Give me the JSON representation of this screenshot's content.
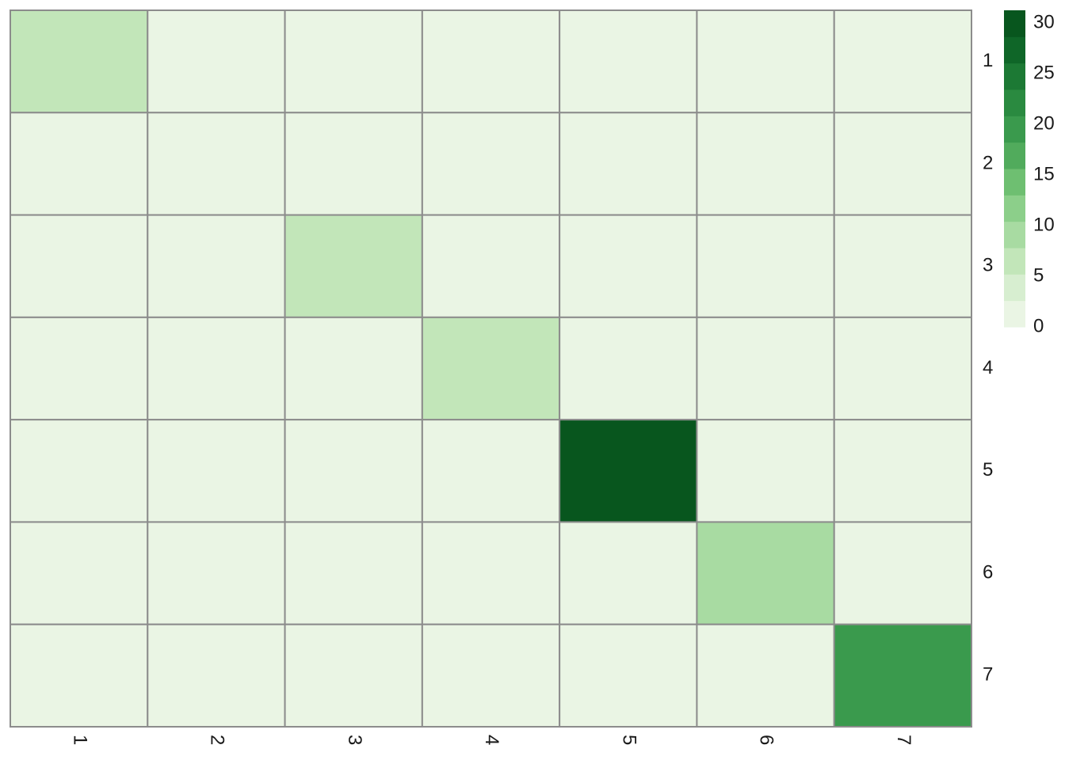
{
  "chart_data": {
    "type": "heatmap",
    "title": "",
    "xlabel": "",
    "ylabel": "",
    "x_categories": [
      "1",
      "2",
      "3",
      "4",
      "5",
      "6",
      "7"
    ],
    "y_categories": [
      "1",
      "2",
      "3",
      "4",
      "5",
      "6",
      "7"
    ],
    "values": [
      [
        6,
        1,
        1,
        1,
        1,
        1,
        1
      ],
      [
        1,
        1,
        1,
        1,
        1,
        1,
        1
      ],
      [
        1,
        1,
        6,
        1,
        1,
        1,
        1
      ],
      [
        1,
        1,
        1,
        6,
        1,
        1,
        1
      ],
      [
        1,
        1,
        1,
        1,
        31,
        1,
        1
      ],
      [
        1,
        1,
        1,
        1,
        1,
        10,
        1
      ],
      [
        1,
        1,
        1,
        1,
        1,
        1,
        21
      ]
    ],
    "color_scale": {
      "min": 0,
      "max": 32.5,
      "ticks": [
        0,
        5,
        10,
        15,
        20,
        25,
        30
      ],
      "bin_edges": [
        0,
        2.5,
        5,
        7.5,
        10,
        12.5,
        15,
        17.5,
        20,
        22.5,
        25,
        27.5,
        30,
        32.5
      ],
      "colors": [
        "#eaf5e4",
        "#cfecca",
        "#b3e0a9",
        "#94d18e",
        "#73c375",
        "#56b05f",
        "#3ba152",
        "#2a8e43",
        "#1a7b37",
        "#0e5c24",
        "#00441b"
      ]
    },
    "legend_position": "right",
    "grid": true,
    "cell_border_color": "#8c8c8c"
  }
}
